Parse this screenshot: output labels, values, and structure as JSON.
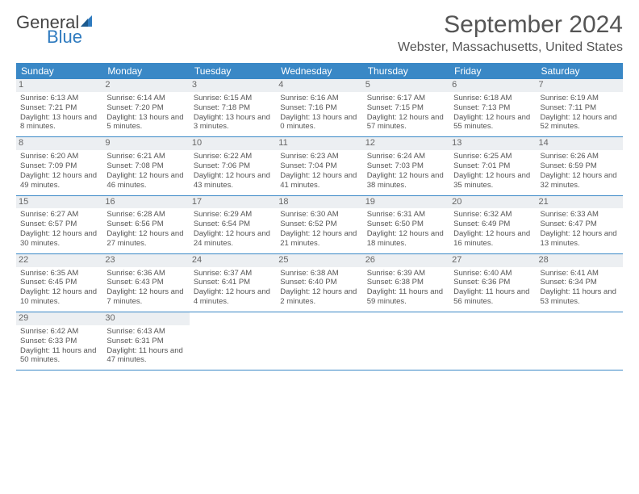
{
  "logo": {
    "general": "General",
    "blue": "Blue"
  },
  "title": "September 2024",
  "location": "Webster, Massachusetts, United States",
  "colors": {
    "header_bg": "#3a88c6",
    "header_text": "#ffffff",
    "text": "#555555",
    "daynum_bg": "#eceff2",
    "border": "#3a88c6",
    "page_bg": "#ffffff",
    "logo_blue": "#2f7bbf"
  },
  "dow": [
    "Sunday",
    "Monday",
    "Tuesday",
    "Wednesday",
    "Thursday",
    "Friday",
    "Saturday"
  ],
  "weeks": [
    [
      {
        "n": "1",
        "sr": "Sunrise: 6:13 AM",
        "ss": "Sunset: 7:21 PM",
        "dl": "Daylight: 13 hours and 8 minutes."
      },
      {
        "n": "2",
        "sr": "Sunrise: 6:14 AM",
        "ss": "Sunset: 7:20 PM",
        "dl": "Daylight: 13 hours and 5 minutes."
      },
      {
        "n": "3",
        "sr": "Sunrise: 6:15 AM",
        "ss": "Sunset: 7:18 PM",
        "dl": "Daylight: 13 hours and 3 minutes."
      },
      {
        "n": "4",
        "sr": "Sunrise: 6:16 AM",
        "ss": "Sunset: 7:16 PM",
        "dl": "Daylight: 13 hours and 0 minutes."
      },
      {
        "n": "5",
        "sr": "Sunrise: 6:17 AM",
        "ss": "Sunset: 7:15 PM",
        "dl": "Daylight: 12 hours and 57 minutes."
      },
      {
        "n": "6",
        "sr": "Sunrise: 6:18 AM",
        "ss": "Sunset: 7:13 PM",
        "dl": "Daylight: 12 hours and 55 minutes."
      },
      {
        "n": "7",
        "sr": "Sunrise: 6:19 AM",
        "ss": "Sunset: 7:11 PM",
        "dl": "Daylight: 12 hours and 52 minutes."
      }
    ],
    [
      {
        "n": "8",
        "sr": "Sunrise: 6:20 AM",
        "ss": "Sunset: 7:09 PM",
        "dl": "Daylight: 12 hours and 49 minutes."
      },
      {
        "n": "9",
        "sr": "Sunrise: 6:21 AM",
        "ss": "Sunset: 7:08 PM",
        "dl": "Daylight: 12 hours and 46 minutes."
      },
      {
        "n": "10",
        "sr": "Sunrise: 6:22 AM",
        "ss": "Sunset: 7:06 PM",
        "dl": "Daylight: 12 hours and 43 minutes."
      },
      {
        "n": "11",
        "sr": "Sunrise: 6:23 AM",
        "ss": "Sunset: 7:04 PM",
        "dl": "Daylight: 12 hours and 41 minutes."
      },
      {
        "n": "12",
        "sr": "Sunrise: 6:24 AM",
        "ss": "Sunset: 7:03 PM",
        "dl": "Daylight: 12 hours and 38 minutes."
      },
      {
        "n": "13",
        "sr": "Sunrise: 6:25 AM",
        "ss": "Sunset: 7:01 PM",
        "dl": "Daylight: 12 hours and 35 minutes."
      },
      {
        "n": "14",
        "sr": "Sunrise: 6:26 AM",
        "ss": "Sunset: 6:59 PM",
        "dl": "Daylight: 12 hours and 32 minutes."
      }
    ],
    [
      {
        "n": "15",
        "sr": "Sunrise: 6:27 AM",
        "ss": "Sunset: 6:57 PM",
        "dl": "Daylight: 12 hours and 30 minutes."
      },
      {
        "n": "16",
        "sr": "Sunrise: 6:28 AM",
        "ss": "Sunset: 6:56 PM",
        "dl": "Daylight: 12 hours and 27 minutes."
      },
      {
        "n": "17",
        "sr": "Sunrise: 6:29 AM",
        "ss": "Sunset: 6:54 PM",
        "dl": "Daylight: 12 hours and 24 minutes."
      },
      {
        "n": "18",
        "sr": "Sunrise: 6:30 AM",
        "ss": "Sunset: 6:52 PM",
        "dl": "Daylight: 12 hours and 21 minutes."
      },
      {
        "n": "19",
        "sr": "Sunrise: 6:31 AM",
        "ss": "Sunset: 6:50 PM",
        "dl": "Daylight: 12 hours and 18 minutes."
      },
      {
        "n": "20",
        "sr": "Sunrise: 6:32 AM",
        "ss": "Sunset: 6:49 PM",
        "dl": "Daylight: 12 hours and 16 minutes."
      },
      {
        "n": "21",
        "sr": "Sunrise: 6:33 AM",
        "ss": "Sunset: 6:47 PM",
        "dl": "Daylight: 12 hours and 13 minutes."
      }
    ],
    [
      {
        "n": "22",
        "sr": "Sunrise: 6:35 AM",
        "ss": "Sunset: 6:45 PM",
        "dl": "Daylight: 12 hours and 10 minutes."
      },
      {
        "n": "23",
        "sr": "Sunrise: 6:36 AM",
        "ss": "Sunset: 6:43 PM",
        "dl": "Daylight: 12 hours and 7 minutes."
      },
      {
        "n": "24",
        "sr": "Sunrise: 6:37 AM",
        "ss": "Sunset: 6:41 PM",
        "dl": "Daylight: 12 hours and 4 minutes."
      },
      {
        "n": "25",
        "sr": "Sunrise: 6:38 AM",
        "ss": "Sunset: 6:40 PM",
        "dl": "Daylight: 12 hours and 2 minutes."
      },
      {
        "n": "26",
        "sr": "Sunrise: 6:39 AM",
        "ss": "Sunset: 6:38 PM",
        "dl": "Daylight: 11 hours and 59 minutes."
      },
      {
        "n": "27",
        "sr": "Sunrise: 6:40 AM",
        "ss": "Sunset: 6:36 PM",
        "dl": "Daylight: 11 hours and 56 minutes."
      },
      {
        "n": "28",
        "sr": "Sunrise: 6:41 AM",
        "ss": "Sunset: 6:34 PM",
        "dl": "Daylight: 11 hours and 53 minutes."
      }
    ],
    [
      {
        "n": "29",
        "sr": "Sunrise: 6:42 AM",
        "ss": "Sunset: 6:33 PM",
        "dl": "Daylight: 11 hours and 50 minutes."
      },
      {
        "n": "30",
        "sr": "Sunrise: 6:43 AM",
        "ss": "Sunset: 6:31 PM",
        "dl": "Daylight: 11 hours and 47 minutes."
      },
      {
        "empty": true
      },
      {
        "empty": true
      },
      {
        "empty": true
      },
      {
        "empty": true
      },
      {
        "empty": true
      }
    ]
  ]
}
